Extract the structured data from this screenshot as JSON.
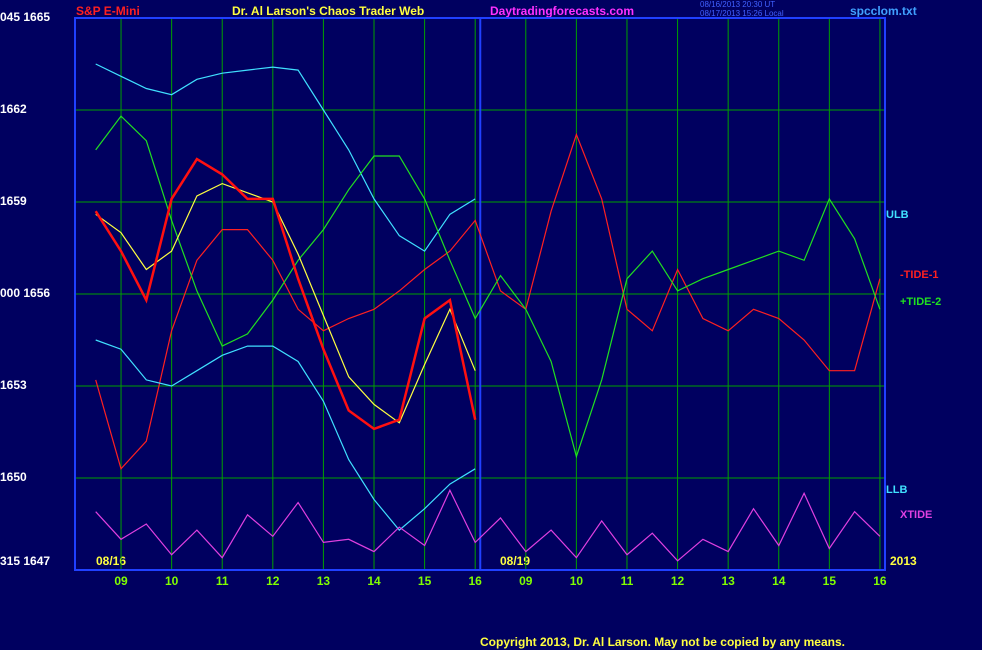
{
  "chart_data": {
    "type": "line",
    "title": "Dr. Al Larson's Chaos Trader Web",
    "instrument": "S&P E-Mini",
    "website": "Daytradingforecasts.com",
    "file": "spcclom.txt",
    "timestamps": [
      "08/16/2013 20:30 UT",
      "08/17/2013 15:26 Local"
    ],
    "copyright": "Copyright 2013, Dr. Al Larson. May not be copied by any means.",
    "annotations": [
      "08/16",
      "08/19",
      "2013"
    ],
    "grid": true,
    "vlines": [
      8.1
    ],
    "xlim": [
      0.09,
      16.1
    ],
    "ylim": [
      1647,
      1665
    ],
    "yticks": [
      {
        "value": 1665,
        "label": "045 1665"
      },
      1662,
      1659,
      {
        "value": 1656,
        "label": "000 1656"
      },
      1653,
      1650,
      {
        "value": 1647,
        "label": "315 1647"
      }
    ],
    "xticks": [
      {
        "value": 1,
        "label": "09"
      },
      {
        "value": 2,
        "label": "10"
      },
      {
        "value": 3,
        "label": "11"
      },
      {
        "value": 4,
        "label": "12"
      },
      {
        "value": 5,
        "label": "13"
      },
      {
        "value": 6,
        "label": "14"
      },
      {
        "value": 7,
        "label": "15"
      },
      {
        "value": 8,
        "label": "16"
      },
      {
        "value": 9,
        "label": "09"
      },
      {
        "value": 10,
        "label": "10"
      },
      {
        "value": 11,
        "label": "11"
      },
      {
        "value": 12,
        "label": "12"
      },
      {
        "value": 13,
        "label": "13"
      },
      {
        "value": 14,
        "label": "14"
      },
      {
        "value": 15,
        "label": "15"
      },
      {
        "value": 16,
        "label": "16"
      }
    ],
    "x": [
      0.5,
      1,
      1.5,
      2,
      2.5,
      3,
      3.5,
      4,
      4.5,
      5,
      5.5,
      6,
      6.5,
      7,
      7.5,
      8,
      8.5,
      9,
      9.5,
      10,
      10.5,
      11,
      11.5,
      12,
      12.5,
      13,
      13.5,
      14,
      14.5,
      15,
      15.5,
      16
    ],
    "series": [
      {
        "name": "ULB",
        "color": "#40e0ff",
        "values": [
          1663.5,
          1663.1,
          1662.7,
          1662.5,
          1663.0,
          1663.2,
          1663.3,
          1663.4,
          1663.3,
          1662.0,
          1660.7,
          1659.1,
          1657.9,
          1657.4,
          1658.6,
          1659.1,
          null,
          null,
          null,
          null,
          null,
          null,
          null,
          null,
          null,
          null,
          null,
          null,
          null,
          null,
          null,
          null
        ]
      },
      {
        "name": "-TIDE-1",
        "color": "#ff2020",
        "values": [
          1653.2,
          1650.3,
          1651.2,
          1654.8,
          1657.1,
          1658.1,
          1658.1,
          1657.1,
          1655.5,
          1654.8,
          1655.2,
          1655.5,
          1656.1,
          1656.8,
          1657.4,
          1658.4,
          1656.1,
          1655.5,
          1658.7,
          1661.2,
          1659.1,
          1655.5,
          1654.8,
          1656.8,
          1655.2,
          1654.8,
          1655.5,
          1655.2,
          1654.5,
          1653.5,
          1653.5,
          1656.5
        ]
      },
      {
        "name": "+TIDE-2",
        "color": "#20e020",
        "values": [
          1660.7,
          1661.8,
          1661.0,
          1658.4,
          1656.1,
          1654.3,
          1654.7,
          1655.8,
          1657.1,
          1658.1,
          1659.4,
          1660.5,
          1660.5,
          1659.1,
          1657.1,
          1655.2,
          1656.6,
          1655.5,
          1653.8,
          1650.7,
          1653.2,
          1656.5,
          1657.4,
          1656.1,
          1656.5,
          1656.8,
          1657.1,
          1657.4,
          1657.1,
          1659.1,
          1657.8,
          1655.5
        ]
      },
      {
        "name": "LLB",
        "color": "#40e0ff",
        "values": [
          1654.5,
          1654.2,
          1653.2,
          1653.0,
          1653.5,
          1654.0,
          1654.3,
          1654.3,
          1653.8,
          1652.5,
          1650.6,
          1649.3,
          1648.3,
          1649.0,
          1649.8,
          1650.3,
          null,
          null,
          null,
          null,
          null,
          null,
          null,
          null,
          null,
          null,
          null,
          null,
          null,
          null,
          null,
          null
        ]
      },
      {
        "name": "XTIDE",
        "color": "#e040e0",
        "values": [
          1648.9,
          1648.0,
          1648.5,
          1647.5,
          1648.3,
          1647.4,
          1648.8,
          1648.1,
          1649.2,
          1647.9,
          1648.0,
          1647.6,
          1648.4,
          1647.8,
          1649.6,
          1647.9,
          1648.7,
          1647.6,
          1648.3,
          1647.4,
          1648.6,
          1647.5,
          1648.2,
          1647.3,
          1648.0,
          1647.6,
          1649.0,
          1647.8,
          1649.5,
          1647.7,
          1648.9,
          1648.1
        ]
      },
      {
        "color": "#ffff40",
        "values": [
          1658.6,
          1658.0,
          1656.8,
          1657.4,
          1659.2,
          1659.6,
          1659.3,
          1659.0,
          1657.3,
          1655.3,
          1653.3,
          1652.4,
          1651.8,
          1653.7,
          1655.5,
          1653.5,
          null,
          null,
          null,
          null,
          null,
          null,
          null,
          null,
          null,
          null,
          null,
          null,
          null,
          null,
          null,
          null
        ]
      },
      {
        "color": "#ff1010",
        "values": [
          1658.7,
          1657.4,
          1655.8,
          1659.1,
          1660.4,
          1659.9,
          1659.1,
          1659.1,
          1656.5,
          1654.2,
          1652.2,
          1651.6,
          1651.9,
          1655.2,
          1655.8,
          1651.9,
          null,
          null,
          null,
          null,
          null,
          null,
          null,
          null,
          null,
          null,
          null,
          null,
          null,
          null,
          null,
          null
        ]
      }
    ]
  }
}
